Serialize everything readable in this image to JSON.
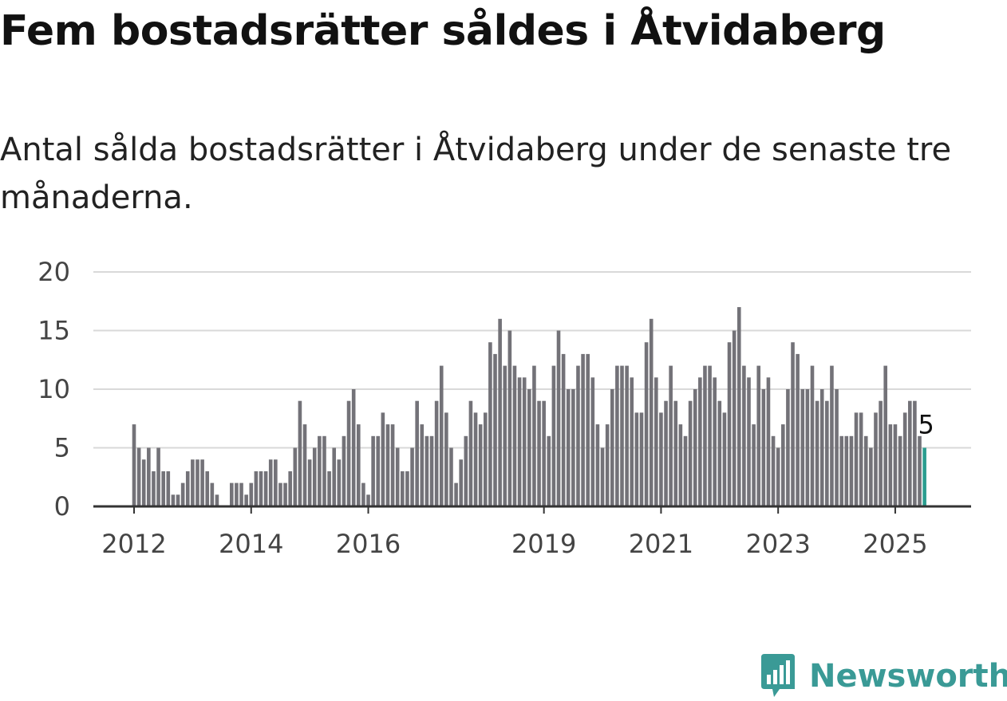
{
  "title": "Fem bostadsrätter såldes i Åtvidaberg",
  "subtitle": "Antal sålda bostadsrätter i Åtvidaberg under de senaste tre månaderna.",
  "brand": {
    "name": "Newsworthy",
    "color": "#3a9a96",
    "icon": "newsworthy-logo-icon"
  },
  "chart_data": {
    "type": "bar",
    "title": "Fem bostadsrätter såldes i Åtvidaberg",
    "subtitle": "Antal sålda bostadsrätter i Åtvidaberg under de senaste tre månaderna.",
    "xlabel": "",
    "ylabel": "",
    "ylim": [
      0,
      20
    ],
    "yticks": [
      0,
      5,
      10,
      15,
      20
    ],
    "x_start": "2012-01",
    "x_end": "2025-06",
    "xticks": [
      {
        "label": "2012",
        "month": "2012-01"
      },
      {
        "label": "2014",
        "month": "2014-01"
      },
      {
        "label": "2016",
        "month": "2016-01"
      },
      {
        "label": "2019",
        "month": "2019-01"
      },
      {
        "label": "2021",
        "month": "2021-01"
      },
      {
        "label": "2023",
        "month": "2023-01"
      },
      {
        "label": "2025",
        "month": "2025-01"
      }
    ],
    "grid": true,
    "bar_color": "#737278",
    "highlight_color": "#2a9d8f",
    "highlight_last": true,
    "last_value_label": "5",
    "values": [
      7,
      5,
      4,
      5,
      3,
      5,
      3,
      3,
      1,
      1,
      2,
      3,
      4,
      4,
      4,
      3,
      2,
      1,
      0,
      0,
      2,
      2,
      2,
      1,
      2,
      3,
      3,
      3,
      4,
      4,
      2,
      2,
      3,
      5,
      9,
      7,
      4,
      5,
      6,
      6,
      3,
      5,
      4,
      6,
      9,
      10,
      7,
      2,
      1,
      6,
      6,
      8,
      7,
      7,
      5,
      3,
      3,
      5,
      9,
      7,
      6,
      6,
      9,
      12,
      8,
      5,
      2,
      4,
      6,
      9,
      8,
      7,
      8,
      14,
      13,
      16,
      12,
      15,
      12,
      11,
      11,
      10,
      12,
      9,
      9,
      6,
      12,
      15,
      13,
      10,
      10,
      12,
      13,
      13,
      11,
      7,
      5,
      7,
      10,
      12,
      12,
      12,
      11,
      8,
      8,
      14,
      16,
      11,
      8,
      9,
      12,
      9,
      7,
      6,
      9,
      10,
      11,
      12,
      12,
      11,
      9,
      8,
      14,
      15,
      17,
      12,
      11,
      7,
      12,
      10,
      11,
      6,
      5,
      7,
      10,
      14,
      13,
      10,
      10,
      12,
      9,
      10,
      9,
      12,
      10,
      6,
      6,
      6,
      8,
      8,
      6,
      5,
      8,
      9,
      12,
      7,
      7,
      6,
      8,
      9,
      9,
      6,
      5
    ]
  }
}
